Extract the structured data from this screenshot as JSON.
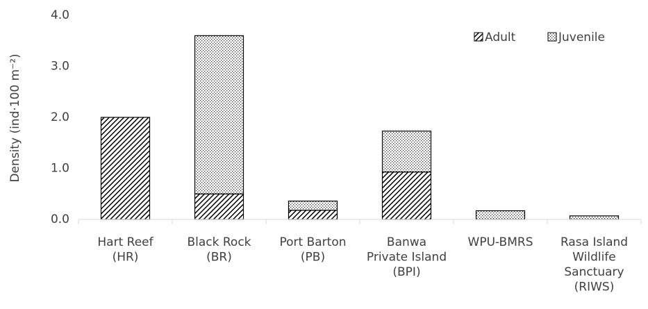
{
  "chart_data": {
    "type": "stacked_bar",
    "y_label": "Density (ind·100 m⁻²)",
    "categories": [
      [
        "Hart Reef",
        "(HR)"
      ],
      [
        "Black Rock",
        "(BR)"
      ],
      [
        "Port Barton",
        "(PB)"
      ],
      [
        "Banwa",
        "Private Island",
        "(BPI)"
      ],
      [
        "WPU-BMRS"
      ],
      [
        "Rasa Island",
        "Wildlife",
        "Sanctuary",
        "(RIWS)"
      ]
    ],
    "series": [
      {
        "name": "Adult",
        "color": "#000000",
        "pattern": "hatch",
        "values": [
          2.0,
          0.5,
          0.18,
          0.93,
          0,
          0
        ]
      },
      {
        "name": "Juvenile",
        "color": "#000000",
        "pattern": "dots",
        "values": [
          0,
          3.1,
          0.18,
          0.8,
          0.17,
          0.07
        ]
      }
    ],
    "ylim": [
      0,
      4
    ],
    "yticks": [
      {
        "value": 0,
        "label": "0.0"
      },
      {
        "value": 1,
        "label": "1.0"
      },
      {
        "value": 2,
        "label": "2.0"
      },
      {
        "value": 3,
        "label": "3.0"
      },
      {
        "value": 4,
        "label": "4.0"
      }
    ],
    "legend": "top-right"
  }
}
